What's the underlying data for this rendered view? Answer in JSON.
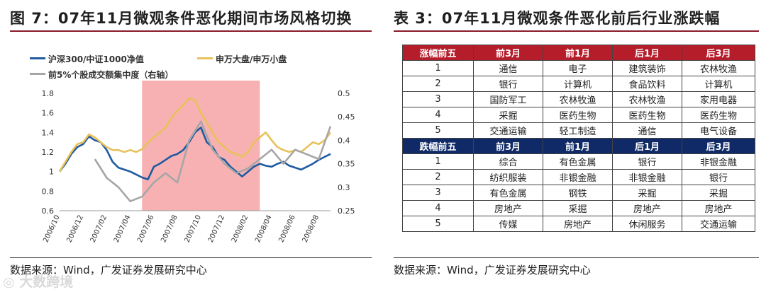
{
  "left_panel": {
    "title": "图 7：07年11月微观条件恶化期间市场风格切换",
    "source": "数据来源：Wind，广发证券发展研究中心"
  },
  "right_panel": {
    "title": "表 3：07年11月微观条件恶化前后行业涨跌幅",
    "source": "数据来源：Wind，广发证券发展研究中心"
  },
  "watermark": "◎ 大数跨境",
  "colors": {
    "series_blue": "#1f5aa0",
    "series_gold": "#e8c15a",
    "series_gray": "#a6a6a6",
    "highlight": "#f7a3a6",
    "table_up": "#b51d2b",
    "table_down": "#0f2a66"
  },
  "chart_data": {
    "type": "line",
    "x_ticks": [
      "2006/10",
      "2006/12",
      "2007/02",
      "2007/04",
      "2007/06",
      "2007/08",
      "2007/10",
      "2007/12",
      "2008/02",
      "2008/04",
      "2008/06",
      "2008/08"
    ],
    "y_left": {
      "ticks": [
        "0.6",
        "0.8",
        "1",
        "1.2",
        "1.4",
        "1.6",
        "1.8"
      ],
      "ylim": [
        0.6,
        1.8
      ]
    },
    "y_right": {
      "ticks": [
        "0.25",
        "0.3",
        "0.35",
        "0.4",
        "0.45",
        "0.5"
      ],
      "ylim": [
        0.25,
        0.5
      ]
    },
    "highlight_period": [
      "2007/05",
      "2008/03"
    ],
    "series": [
      {
        "name": "沪深300/中证1000净值",
        "axis": "left",
        "color": "#1f5aa0",
        "x": [
          0,
          0.5,
          1,
          1.5,
          2,
          2.5,
          3,
          3.5,
          4,
          4.5,
          5,
          5.5,
          6,
          6.5,
          7,
          7.5,
          8,
          8.5,
          9,
          9.5,
          10,
          10.5,
          11,
          11.5,
          12,
          12.5,
          13,
          13.5,
          14,
          14.5,
          15,
          15.5,
          16,
          16.5,
          17,
          17.5,
          18,
          18.5,
          19,
          19.5,
          20,
          20.5,
          21,
          21.5,
          22,
          22.5,
          23
        ],
        "values": [
          1.0,
          1.08,
          1.18,
          1.25,
          1.28,
          1.36,
          1.32,
          1.3,
          1.22,
          1.1,
          1.04,
          1.02,
          1.0,
          0.97,
          0.94,
          0.92,
          1.05,
          1.08,
          1.12,
          1.16,
          1.18,
          1.22,
          1.3,
          1.4,
          1.45,
          1.3,
          1.25,
          1.15,
          1.12,
          1.05,
          1.0,
          0.95,
          1.0,
          1.05,
          1.08,
          1.06,
          1.05,
          1.08,
          1.1,
          1.06,
          1.04,
          1.02,
          1.05,
          1.08,
          1.12,
          1.15,
          1.18
        ]
      },
      {
        "name": "申万大盘/申万小盘",
        "axis": "left",
        "color": "#e8c15a",
        "x": [
          0,
          0.5,
          1,
          1.5,
          2,
          2.5,
          3,
          3.5,
          4,
          4.5,
          5,
          5.5,
          6,
          6.5,
          7,
          7.5,
          8,
          8.5,
          9,
          9.5,
          10,
          10.5,
          11,
          11.5,
          12,
          12.5,
          13,
          13.5,
          14,
          14.5,
          15,
          15.5,
          16,
          16.5,
          17,
          17.5,
          18,
          18.5,
          19,
          19.5,
          20,
          20.5,
          21,
          21.5,
          22,
          22.5,
          23
        ],
        "values": [
          1.0,
          1.1,
          1.2,
          1.28,
          1.3,
          1.38,
          1.35,
          1.3,
          1.25,
          1.22,
          1.22,
          1.2,
          1.22,
          1.2,
          1.23,
          1.3,
          1.35,
          1.4,
          1.45,
          1.55,
          1.62,
          1.68,
          1.75,
          1.73,
          1.6,
          1.5,
          1.4,
          1.3,
          1.25,
          1.2,
          1.18,
          1.15,
          1.2,
          1.3,
          1.35,
          1.4,
          1.32,
          1.25,
          1.22,
          1.2,
          1.22,
          1.2,
          1.25,
          1.3,
          1.28,
          1.32,
          1.4
        ]
      },
      {
        "name": "前5%个股成交额集中度（右轴）",
        "axis": "right",
        "color": "#a6a6a6",
        "x": [
          3,
          4,
          5,
          6,
          7,
          8,
          9,
          10,
          11,
          12,
          13,
          14,
          15,
          16,
          17,
          18,
          19,
          20,
          21,
          22,
          23
        ],
        "values": [
          0.36,
          0.32,
          0.3,
          0.27,
          0.28,
          0.31,
          0.33,
          0.31,
          0.4,
          0.44,
          0.38,
          0.35,
          0.33,
          0.34,
          0.36,
          0.38,
          0.35,
          0.38,
          0.37,
          0.36,
          0.43
        ]
      }
    ]
  },
  "table": {
    "up_header": [
      "涨幅前五",
      "前3月",
      "前1月",
      "后1月",
      "后3月"
    ],
    "up_rows": [
      [
        "1",
        "通信",
        "电子",
        "建筑装饰",
        "农林牧渔"
      ],
      [
        "2",
        "银行",
        "计算机",
        "食品饮料",
        "计算机"
      ],
      [
        "3",
        "国防军工",
        "农林牧渔",
        "农林牧渔",
        "家用电器"
      ],
      [
        "4",
        "采掘",
        "医药生物",
        "医药生物",
        "医药生物"
      ],
      [
        "5",
        "交通运输",
        "轻工制造",
        "通信",
        "电气设备"
      ]
    ],
    "down_header": [
      "跌幅前五",
      "前3月",
      "前1月",
      "后1月",
      "后3月"
    ],
    "down_rows": [
      [
        "1",
        "综合",
        "有色金属",
        "银行",
        "非银金融"
      ],
      [
        "2",
        "纺织服装",
        "非银金融",
        "非银金融",
        "银行"
      ],
      [
        "3",
        "有色金属",
        "钢铁",
        "采掘",
        "采掘"
      ],
      [
        "4",
        "房地产",
        "采掘",
        "房地产",
        "房地产"
      ],
      [
        "5",
        "传媒",
        "房地产",
        "休闲服务",
        "交通运输"
      ]
    ]
  }
}
